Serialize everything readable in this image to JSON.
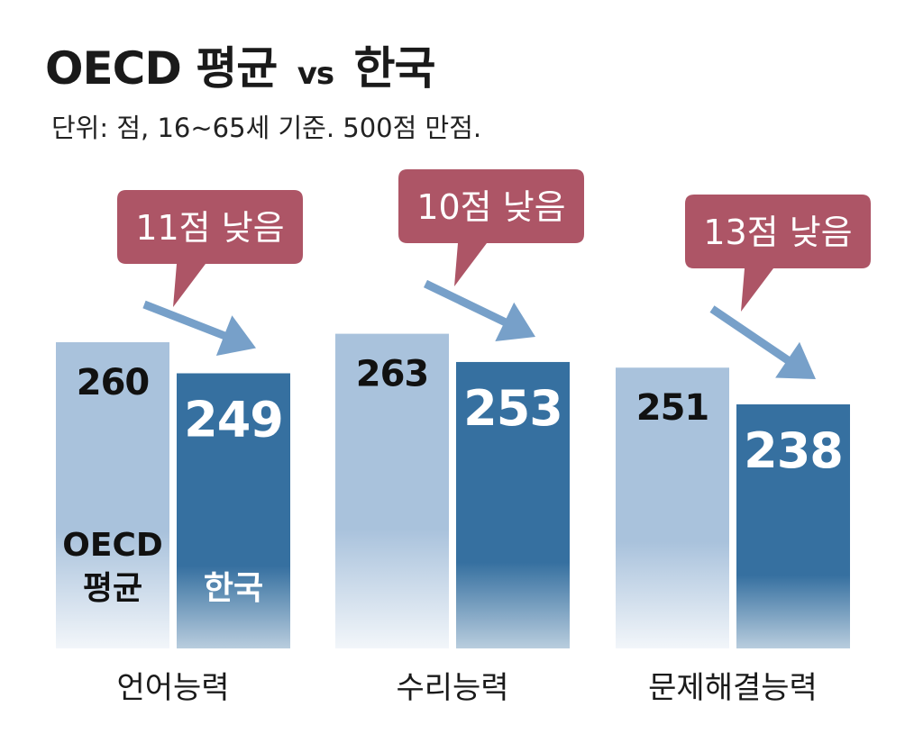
{
  "title": {
    "part1": "OECD 평균",
    "vs": "vs",
    "part2": "한국"
  },
  "subtitle": "단위: 점, 16~65세 기준. 500점 만점.",
  "colors": {
    "oecd": "#a9c2dc",
    "korea": "#3670a0",
    "callout": "#ad5566",
    "arrow": "#5f8fc0"
  },
  "chart_data": {
    "type": "bar",
    "categories": [
      "언어능력",
      "수리능력",
      "문제해결능력"
    ],
    "series": [
      {
        "name": "OECD 평균",
        "values": [
          260,
          263,
          251
        ]
      },
      {
        "name": "한국",
        "values": [
          249,
          253,
          238
        ]
      }
    ],
    "series_label_lines": [
      [
        "OECD",
        "평균"
      ],
      [
        "한국"
      ]
    ],
    "annotations": [
      "11점 낮음",
      "10점 낮음",
      "13점 낮음"
    ],
    "ylim": [
      0,
      300
    ]
  }
}
